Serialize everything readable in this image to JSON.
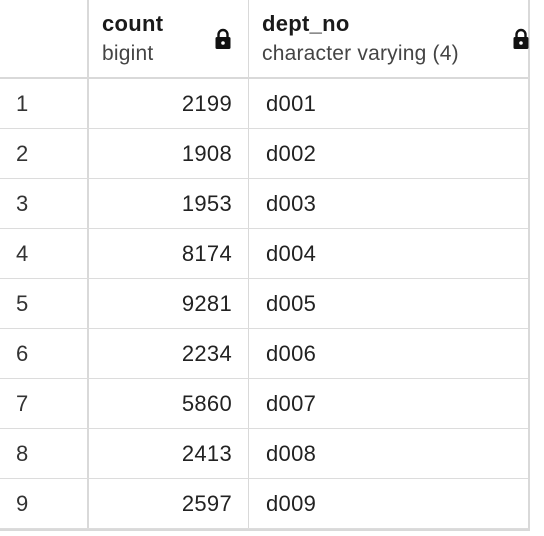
{
  "columns": [
    {
      "name": "count",
      "type": "bigint",
      "lock_icon": "lock-icon"
    },
    {
      "name": "dept_no",
      "type": "character varying (4)",
      "lock_icon": "lock-icon"
    }
  ],
  "rows": [
    {
      "index": "1",
      "count": "2199",
      "dept_no": "d001"
    },
    {
      "index": "2",
      "count": "1908",
      "dept_no": "d002"
    },
    {
      "index": "3",
      "count": "1953",
      "dept_no": "d003"
    },
    {
      "index": "4",
      "count": "8174",
      "dept_no": "d004"
    },
    {
      "index": "5",
      "count": "9281",
      "dept_no": "d005"
    },
    {
      "index": "6",
      "count": "2234",
      "dept_no": "d006"
    },
    {
      "index": "7",
      "count": "5860",
      "dept_no": "d007"
    },
    {
      "index": "8",
      "count": "2413",
      "dept_no": "d008"
    },
    {
      "index": "9",
      "count": "2597",
      "dept_no": "d009"
    }
  ]
}
